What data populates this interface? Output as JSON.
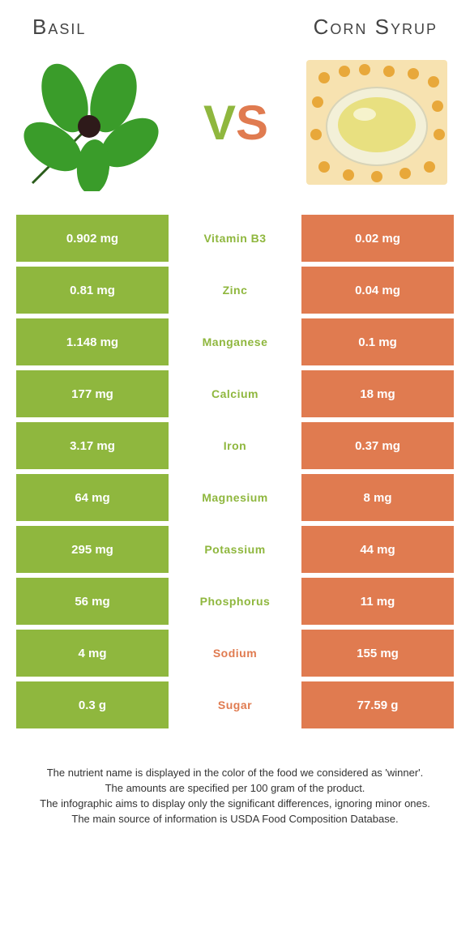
{
  "titles": {
    "left": "Basil",
    "right": "Corn syrup"
  },
  "vs": {
    "v": "V",
    "s": "S"
  },
  "colors": {
    "left_cell": "#8fb73e",
    "right_cell": "#e07b50",
    "center_bg": "#ffffff"
  },
  "rows": [
    {
      "left": "0.902 mg",
      "label": "Vitamin B3",
      "right": "0.02 mg",
      "winner": "left"
    },
    {
      "left": "0.81 mg",
      "label": "Zinc",
      "right": "0.04 mg",
      "winner": "left"
    },
    {
      "left": "1.148 mg",
      "label": "Manganese",
      "right": "0.1 mg",
      "winner": "left"
    },
    {
      "left": "177 mg",
      "label": "Calcium",
      "right": "18 mg",
      "winner": "left"
    },
    {
      "left": "3.17 mg",
      "label": "Iron",
      "right": "0.37 mg",
      "winner": "left"
    },
    {
      "left": "64 mg",
      "label": "Magnesium",
      "right": "8 mg",
      "winner": "left"
    },
    {
      "left": "295 mg",
      "label": "Potassium",
      "right": "44 mg",
      "winner": "left"
    },
    {
      "left": "56 mg",
      "label": "Phosphorus",
      "right": "11 mg",
      "winner": "left"
    },
    {
      "left": "4 mg",
      "label": "Sodium",
      "right": "155 mg",
      "winner": "right"
    },
    {
      "left": "0.3 g",
      "label": "Sugar",
      "right": "77.59 g",
      "winner": "right"
    }
  ],
  "footer": {
    "l1": "The nutrient name is displayed in the color of the food we considered as 'winner'.",
    "l2": "The amounts are specified per 100 gram of the product.",
    "l3": "The infographic aims to display only the significant differences, ignoring minor ones.",
    "l4": "The main source of information is USDA Food Composition Database."
  }
}
